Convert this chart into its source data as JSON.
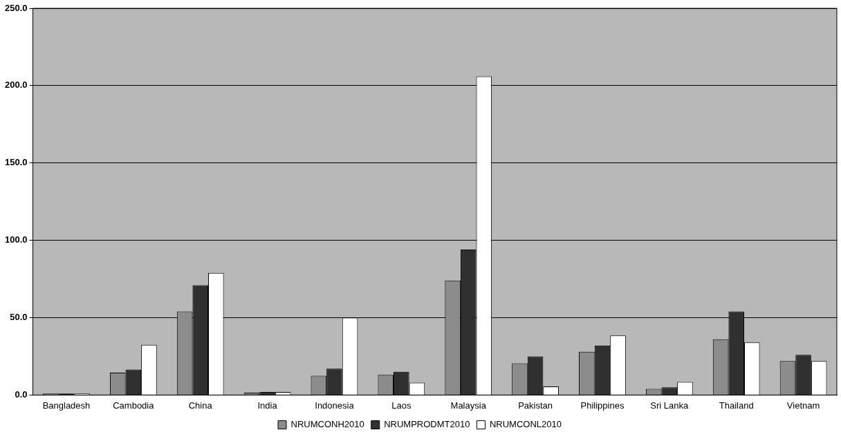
{
  "chart_data": {
    "type": "bar",
    "categories": [
      "Bangladesh",
      "Cambodia",
      "China",
      "India",
      "Indonesia",
      "Laos",
      "Malaysia",
      "Pakistan",
      "Philippines",
      "Sri Lanka",
      "Thailand",
      "Vietnam"
    ],
    "series": [
      {
        "name": "NRUMCONH2010",
        "color": "#8c8c8c",
        "values": [
          1,
          14.5,
          54,
          1.5,
          12.5,
          13,
          74,
          20.5,
          28,
          4,
          36,
          22
        ]
      },
      {
        "name": "NRUMPRODMT2010",
        "color": "#303030",
        "values": [
          1,
          16.5,
          71,
          2,
          17,
          15,
          94,
          25,
          32,
          5,
          54,
          26
        ]
      },
      {
        "name": "NRUMCONL2010",
        "color": "#ffffff",
        "values": [
          1,
          32.5,
          79,
          2,
          50,
          8,
          206,
          5.5,
          38.5,
          8.5,
          34,
          22
        ]
      }
    ],
    "ylim": [
      0,
      250
    ],
    "yticks": [
      {
        "value": 0,
        "label": "0.0"
      },
      {
        "value": 50,
        "label": "50.0"
      },
      {
        "value": 100,
        "label": "100.0"
      },
      {
        "value": 150,
        "label": "150.0"
      },
      {
        "value": 200,
        "label": "200.0"
      },
      {
        "value": 250,
        "label": "250.0"
      }
    ],
    "grid": "y",
    "legend": "bottom"
  }
}
